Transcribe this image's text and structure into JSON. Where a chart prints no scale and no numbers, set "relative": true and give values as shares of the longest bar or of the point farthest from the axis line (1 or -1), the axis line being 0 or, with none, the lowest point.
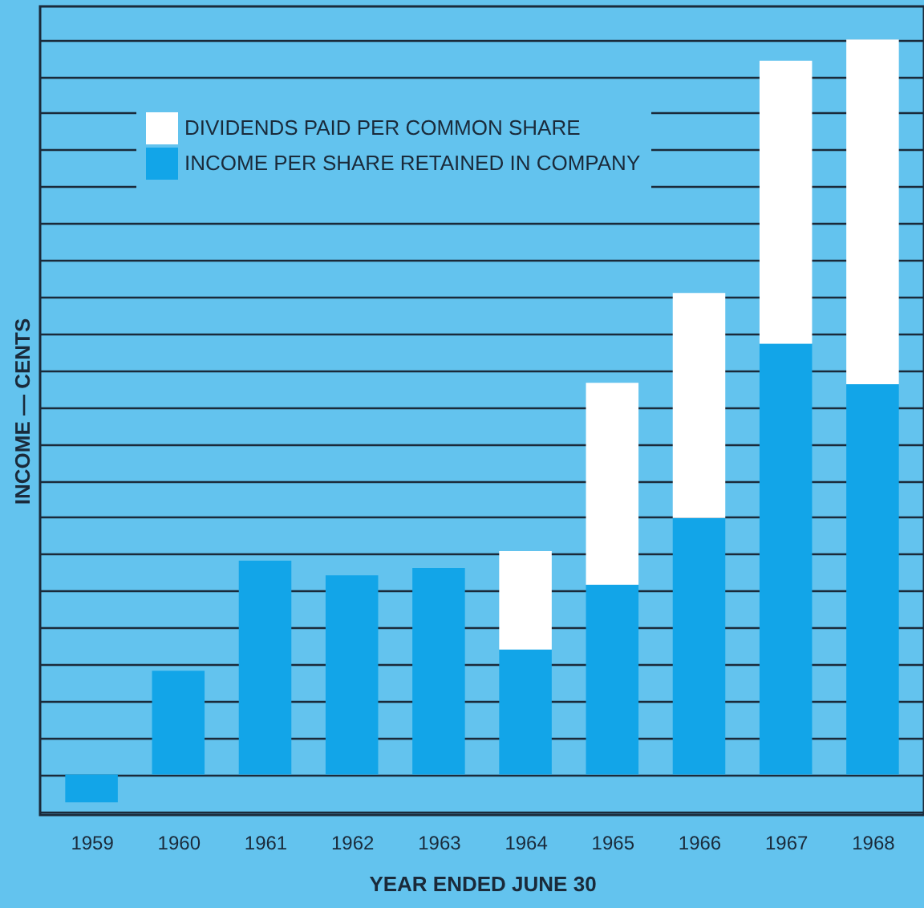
{
  "chart_data": {
    "type": "bar",
    "stacked": true,
    "relative": true,
    "xlabel": "YEAR ENDED JUNE 30",
    "ylabel": "INCOME — CENTS",
    "categories": [
      "1959",
      "1960",
      "1961",
      "1962",
      "1963",
      "1964",
      "1965",
      "1966",
      "1967",
      "1968"
    ],
    "series": [
      {
        "name": "INCOME PER SHARE RETAINED IN COMPANY",
        "color": "#12a5e8",
        "values": [
          -0.038,
          0.141,
          0.291,
          0.271,
          0.281,
          0.17,
          0.258,
          0.349,
          0.586,
          0.531
        ]
      },
      {
        "name": "DIVIDENDS PAID PER COMMON SHARE",
        "color": "#ffffff",
        "values": [
          null,
          null,
          null,
          null,
          null,
          0.134,
          0.275,
          0.306,
          0.385,
          0.469
        ]
      }
    ],
    "grid": "y",
    "legend": "top left"
  }
}
